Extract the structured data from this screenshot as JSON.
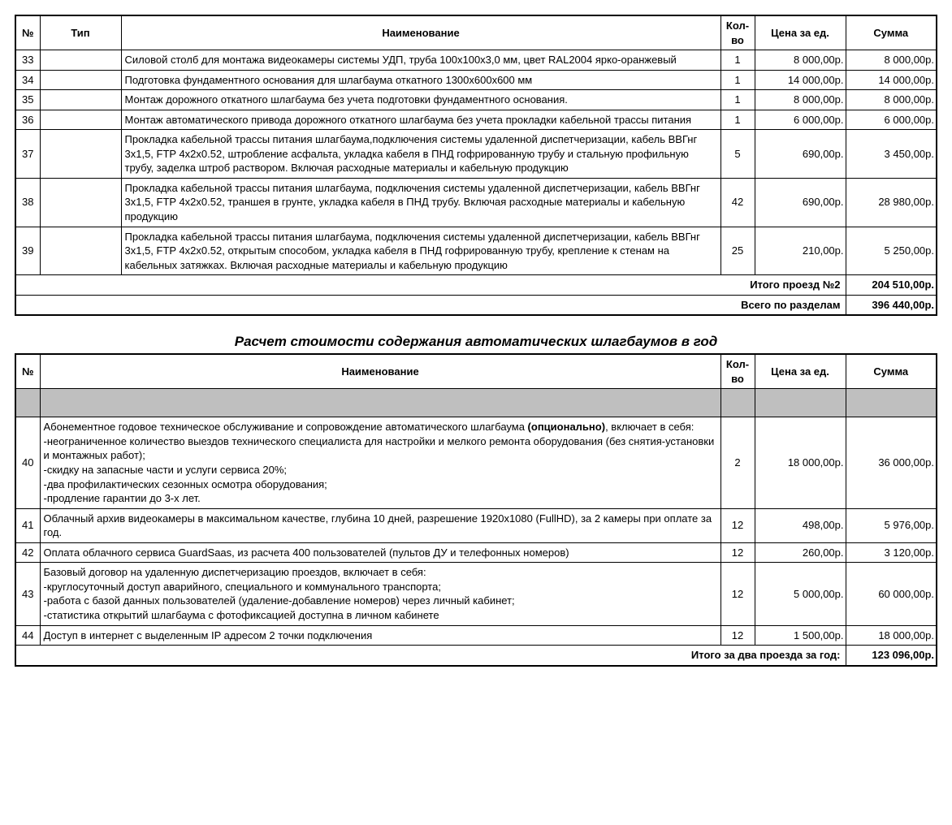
{
  "table1": {
    "headers": {
      "num": "№",
      "type": "Тип",
      "name": "Наименование",
      "qty": "Кол-во",
      "price": "Цена за ед.",
      "sum": "Сумма"
    },
    "rows": [
      {
        "num": "33",
        "type": "",
        "name": "Силовой столб для монтажа видеокамеры системы УДП, труба 100х100х3,0 мм, цвет RAL2004 ярко-оранжевый",
        "qty": "1",
        "price": "8 000,00р.",
        "sum": "8 000,00р."
      },
      {
        "num": "34",
        "type": "",
        "name": "Подготовка фундаментного основания для шлагбаума откатного 1300х600х600 мм",
        "qty": "1",
        "price": "14 000,00р.",
        "sum": "14 000,00р."
      },
      {
        "num": "35",
        "type": "",
        "name": "Монтаж дорожного откатного шлагбаума без учета подготовки фундаментного основания.",
        "qty": "1",
        "price": "8 000,00р.",
        "sum": "8 000,00р."
      },
      {
        "num": "36",
        "type": "",
        "name": "Монтаж автоматического привода дорожного откатного шлагбаума без учета прокладки кабельной трассы питания",
        "qty": "1",
        "price": "6 000,00р.",
        "sum": "6 000,00р."
      },
      {
        "num": "37",
        "type": "",
        "name": "Прокладка кабельной трассы питания шлагбаума,подключения системы удаленной диспетчеризации, кабель ВВГнг 3х1,5, FTP 4х2х0.52, штробление асфальта, укладка кабеля в ПНД гофрированную трубу и стальную профильную трубу, заделка штроб раствором. Включая расходные материалы и кабельную продукцию",
        "qty": "5",
        "price": "690,00р.",
        "sum": "3 450,00р."
      },
      {
        "num": "38",
        "type": "",
        "name": "Прокладка кабельной трассы питания шлагбаума, подключения системы удаленной диспетчеризации, кабель ВВГнг 3х1,5, FTP 4х2х0.52, траншея в грунте, укладка кабеля в ПНД трубу. Включая расходные материалы и кабельную продукцию",
        "qty": "42",
        "price": "690,00р.",
        "sum": "28 980,00р."
      },
      {
        "num": "39",
        "type": "",
        "name": "Прокладка кабельной трассы питания шлагбаума, подключения системы удаленной диспетчеризации, кабель ВВГнг 3х1,5, FTP 4х2х0.52, открытым способом, укладка кабеля в ПНД гофрированную трубу, крепление к стенам на кабельных затяжках. Включая расходные материалы и кабельную продукцию",
        "qty": "25",
        "price": "210,00р.",
        "sum": "5 250,00р."
      }
    ],
    "subtotal_label": "Итого проезд №2",
    "subtotal_value": "204 510,00р.",
    "grand_label": "Всего по разделам",
    "grand_value": "396 440,00р."
  },
  "section2_title": "Расчет стоимости содержания автоматических шлагбаумов в год",
  "table2": {
    "headers": {
      "num": "№",
      "name": "Наименование",
      "qty": "Кол-во",
      "price": "Цена за ед.",
      "sum": "Сумма"
    },
    "rows": [
      {
        "num": "40",
        "name_pre": "Абонементное годовое техническое обслуживание и сопровождение автоматического шлагбаума ",
        "name_bold": "(опционально)",
        "name_post": ", включает в себя:\n-неограниченное количество выездов технического специалиста для настройки и мелкого ремонта оборудования (без снятия-установки и монтажных работ);\n-скидку на запасные части и услуги сервиса 20%;\n-два профилактических сезонных осмотра оборудования;\n-продление гарантии до 3-х лет.",
        "qty": "2",
        "price": "18 000,00р.",
        "sum": "36 000,00р."
      },
      {
        "num": "41",
        "name": "Облачный архив видеокамеры в максимальном качестве, глубина 10 дней, разрешение 1920х1080 (FullHD), за 2 камеры при оплате за год.",
        "qty": "12",
        "price": "498,00р.",
        "sum": "5 976,00р."
      },
      {
        "num": "42",
        "name": "Оплата облачного сервиса GuardSaas, из расчета 400 пользователей (пультов ДУ и телефонных номеров)",
        "qty": "12",
        "price": "260,00р.",
        "sum": "3 120,00р."
      },
      {
        "num": "43",
        "name": "Базовый договор на удаленную диспетчеризацию проездов, включает в себя:\n-круглосуточный доступ аварийного, специального и коммунального транспорта;\n-работа с базой данных пользователей (удаление-добавление номеров) через личный кабинет;\n-статистика открытий шлагбаума с фотофиксацией доступна в личном кабинете",
        "qty": "12",
        "price": "5 000,00р.",
        "sum": "60 000,00р."
      },
      {
        "num": "44",
        "name": "Доступ в интернет с выделенным IP адресом 2 точки подключения",
        "qty": "12",
        "price": "1 500,00р.",
        "sum": "18 000,00р."
      }
    ],
    "total_label": "Итого за два проезда за год:",
    "total_value": "123 096,00р."
  }
}
